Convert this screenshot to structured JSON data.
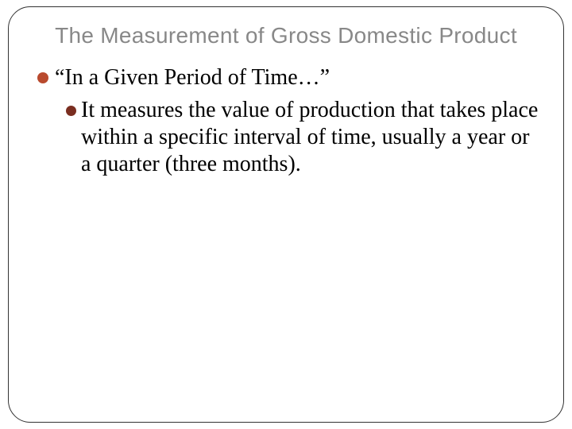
{
  "slide": {
    "title": "The Measurement of Gross Domestic Product",
    "bullets": {
      "level1": {
        "text": "“In a Given Period of Time…”",
        "color": "#b94a2e"
      },
      "level2": {
        "text": "It measures the value of production that takes place within a specific interval of time, usually a year or a quarter (three months).",
        "color": "#7a2e20"
      }
    },
    "styling": {
      "frame_border_color": "#333333",
      "frame_border_radius": 28,
      "title_color": "#888888",
      "title_fontsize": 28,
      "body_fontsize": 28,
      "body_color": "#000000",
      "background_color": "#ffffff"
    }
  }
}
